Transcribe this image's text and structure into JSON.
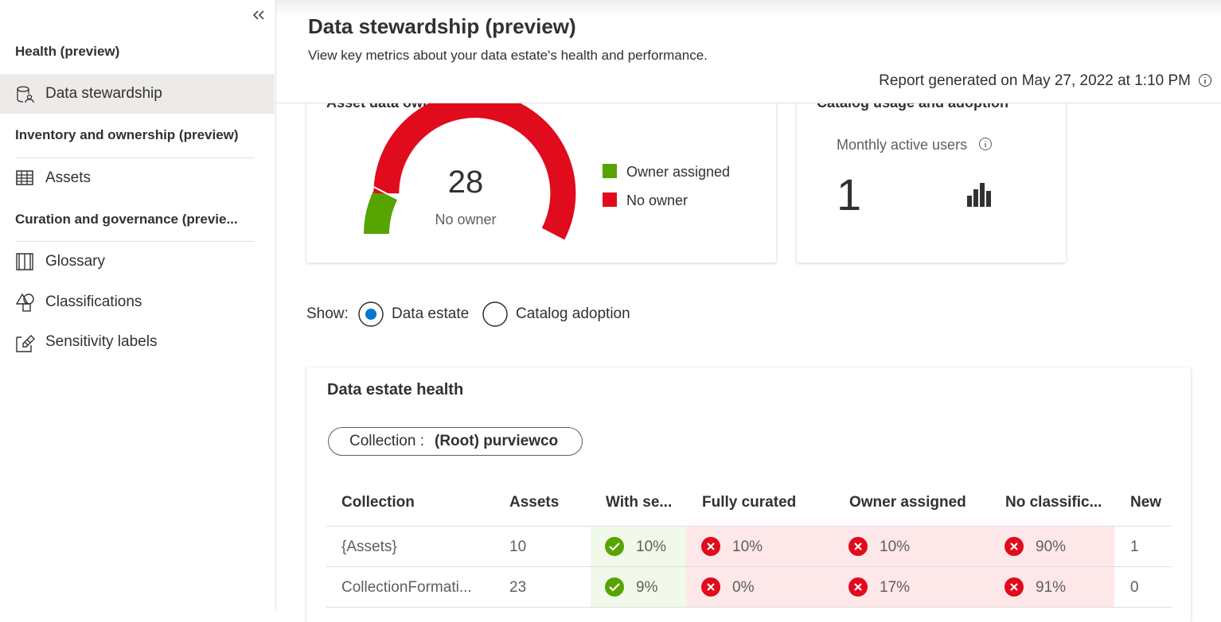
{
  "sidebar": {
    "sections": [
      {
        "title": "Health (preview)",
        "items": [
          "Data stewardship"
        ]
      },
      {
        "title": "Inventory and ownership (preview)",
        "items": [
          "Assets"
        ]
      },
      {
        "title": "Curation and governance (previe...",
        "items": [
          "Glossary",
          "Classifications",
          "Sensitivity labels"
        ]
      }
    ]
  },
  "header": {
    "title": "Data stewardship (preview)",
    "subtitle": "View key metrics about your data estate's health and performance.",
    "report": "Report generated on May 27, 2022 at 1:10 PM"
  },
  "ownership_card": {
    "title": "Asset data ownership",
    "chart_data": {
      "type": "gauge",
      "center_label": "No owner",
      "series": [
        {
          "name": "Owner assigned",
          "color": "#57a300",
          "value": 5
        },
        {
          "name": "No owner",
          "color": "#e00b1c",
          "value": 28
        }
      ]
    }
  },
  "usage_card": {
    "title": "Catalog usage and adoption",
    "metric": "Monthly active users",
    "value": "1"
  },
  "show": {
    "label": "Show:",
    "options": [
      "Data estate",
      "Catalog adoption"
    ]
  },
  "health_card": {
    "title": "Data estate health",
    "filter_key": "Collection :",
    "filter_value": "(Root) purviewco",
    "table": {
      "columns": [
        "Collection",
        "Assets",
        "With se...",
        "Fully curated",
        "Owner assigned",
        "No classific...",
        "New"
      ],
      "rows": [
        [
          "{Assets}",
          "10",
          "10%",
          "10%",
          "10%",
          "90%",
          "1"
        ],
        [
          "CollectionFormati...",
          "23",
          "9%",
          "0%",
          "17%",
          "91%",
          "0"
        ]
      ]
    }
  }
}
